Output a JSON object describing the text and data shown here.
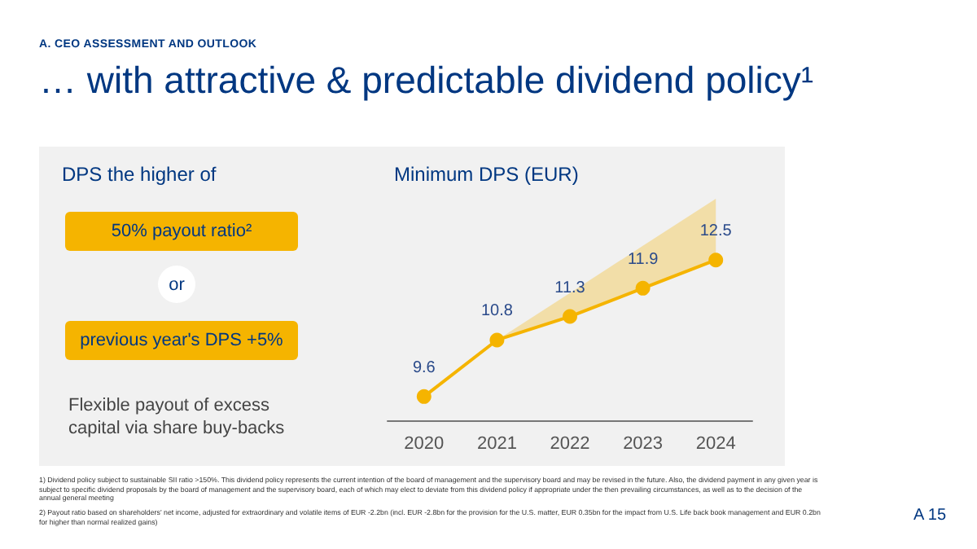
{
  "chart_data": {
    "type": "line",
    "title": "… with attractive & predictable dividend policy¹",
    "subtitle": "A. CEO ASSESSMENT AND OUTLOOK",
    "ylabel": "Minimum DPS (EUR)",
    "categories": [
      "2020",
      "2021",
      "2022",
      "2023",
      "2024"
    ],
    "series": [
      {
        "color": "#f5b400",
        "values": [
          9.6,
          10.8,
          11.3,
          11.9,
          12.5
        ],
        "lower": [
          null,
          10.8,
          11.3,
          11.9,
          12.5
        ],
        "upper": [
          null,
          10.8,
          11.8,
          12.8,
          13.8
        ]
      }
    ],
    "data_labels": true,
    "marker": "circle",
    "line_style": "solid",
    "grid": false,
    "annotations": [
      "DPS the higher of",
      "50% payout ratio²",
      "or",
      "previous year's DPS +5%",
      "Flexible payout of excess capital via share buy-backs",
      "1)  Dividend policy subject to sustainable SII ratio >150%. This dividend policy represents the current intention of the board of management and the supervisory board and may be revised in the future. Also, the dividend payment in any given year is subject to specific dividend proposals by the board of management and the supervisory board, each of which may elect to deviate from this dividend policy if appropriate under the then prevailing circumstances, as well as to the decision of the annual general meeting",
      "2)  Payout ratio based on shareholders' net income, adjusted for extraordinary and volatile items of EUR -2.2bn (incl. EUR -2.8bn for the provision for the U.S. matter, EUR 0.35bn for the impact from U.S. Life back book management and EUR 0.2bn for higher than normal realized gains)",
      "A 15"
    ]
  }
}
